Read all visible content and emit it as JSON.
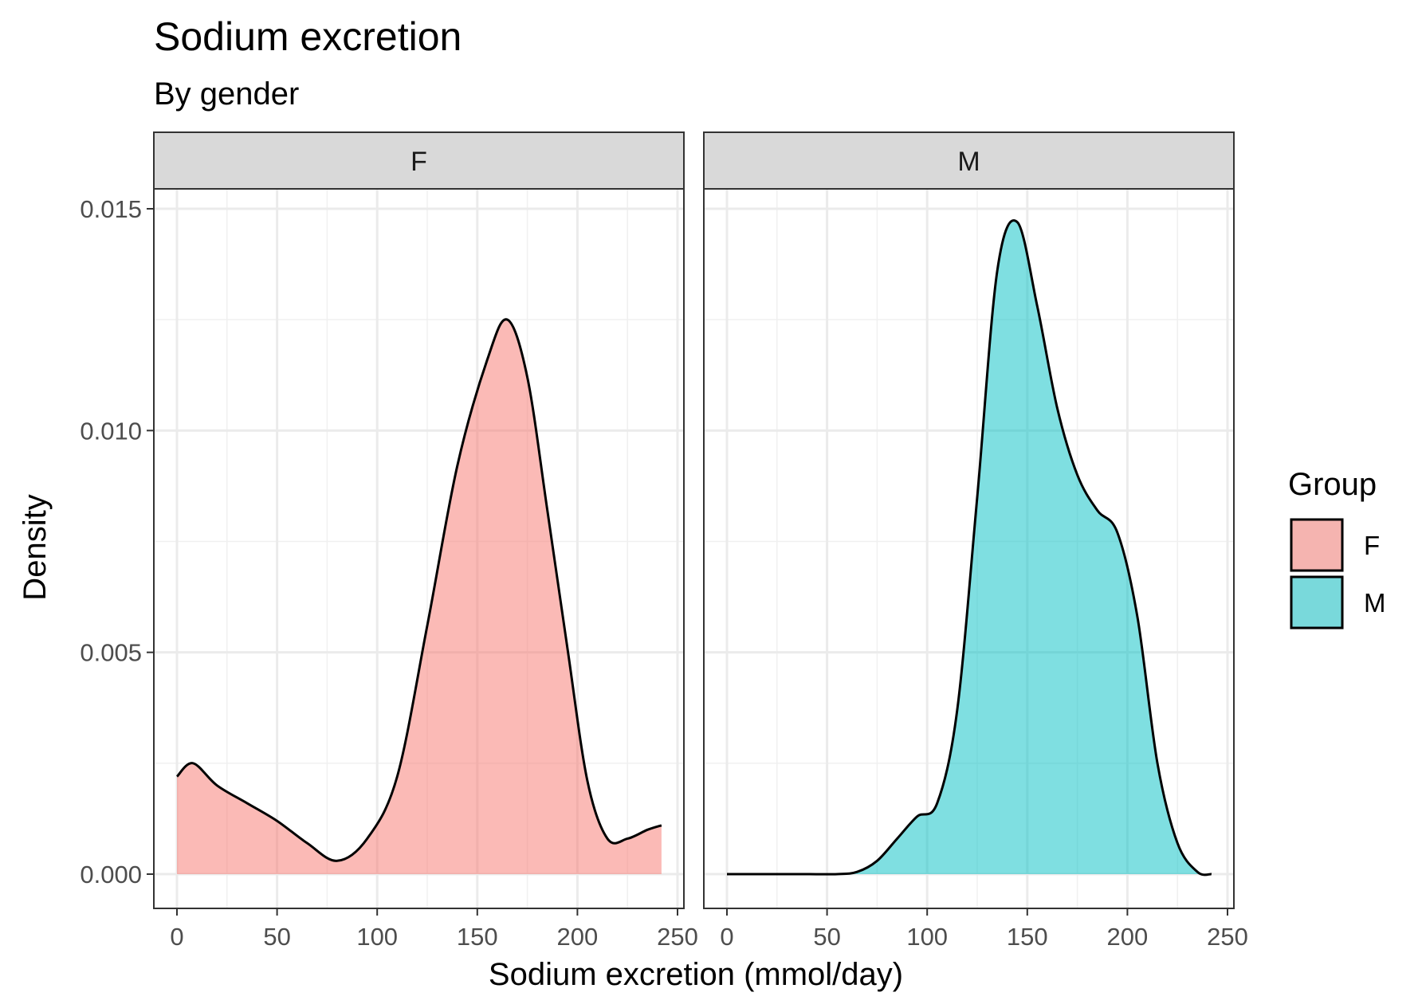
{
  "chart_data": {
    "type": "area",
    "title": "Sodium excretion",
    "subtitle": "By gender",
    "xlabel": "Sodium excretion (mmol/day)",
    "ylabel": "Density",
    "xlim": [
      0,
      250
    ],
    "ylim": [
      0,
      0.015
    ],
    "x_ticks": [
      0,
      50,
      100,
      150,
      200,
      250
    ],
    "x_tick_labels": [
      "0",
      "50",
      "100",
      "150",
      "200",
      "250"
    ],
    "y_ticks": [
      0,
      0.005,
      0.01,
      0.015
    ],
    "y_tick_labels": [
      "0.000",
      "0.005",
      "0.010",
      "0.015"
    ],
    "grid": true,
    "legend": {
      "title": "Group",
      "position": "right",
      "entries": [
        {
          "label": "F",
          "color": "#F8766D"
        },
        {
          "label": "M",
          "color": "#00BFC4"
        }
      ]
    },
    "panels": [
      {
        "strip_label": "F",
        "series": {
          "name": "F",
          "color": "#F8766D",
          "x": [
            0,
            8,
            20,
            35,
            50,
            65,
            80,
            95,
            110,
            125,
            140,
            155,
            165,
            175,
            185,
            195,
            205,
            215,
            225,
            235,
            242
          ],
          "y": [
            0.0022,
            0.0025,
            0.002,
            0.0016,
            0.0012,
            0.0007,
            0.0003,
            0.0008,
            0.0022,
            0.0056,
            0.0092,
            0.0116,
            0.0125,
            0.0112,
            0.0082,
            0.0051,
            0.0021,
            0.0008,
            0.0008,
            0.001,
            0.0011
          ]
        }
      },
      {
        "strip_label": "M",
        "series": {
          "name": "M",
          "color": "#00BFC4",
          "x": [
            0,
            20,
            40,
            55,
            65,
            75,
            85,
            95,
            105,
            115,
            125,
            135,
            145,
            155,
            165,
            175,
            185,
            195,
            205,
            215,
            225,
            235,
            242
          ],
          "y": [
            0,
            0,
            0,
            0,
            5e-05,
            0.0003,
            0.0008,
            0.0013,
            0.0016,
            0.0037,
            0.0085,
            0.0136,
            0.0147,
            0.0128,
            0.0105,
            0.009,
            0.0082,
            0.0077,
            0.0058,
            0.0025,
            0.0007,
            5e-05,
            0
          ]
        }
      }
    ]
  }
}
